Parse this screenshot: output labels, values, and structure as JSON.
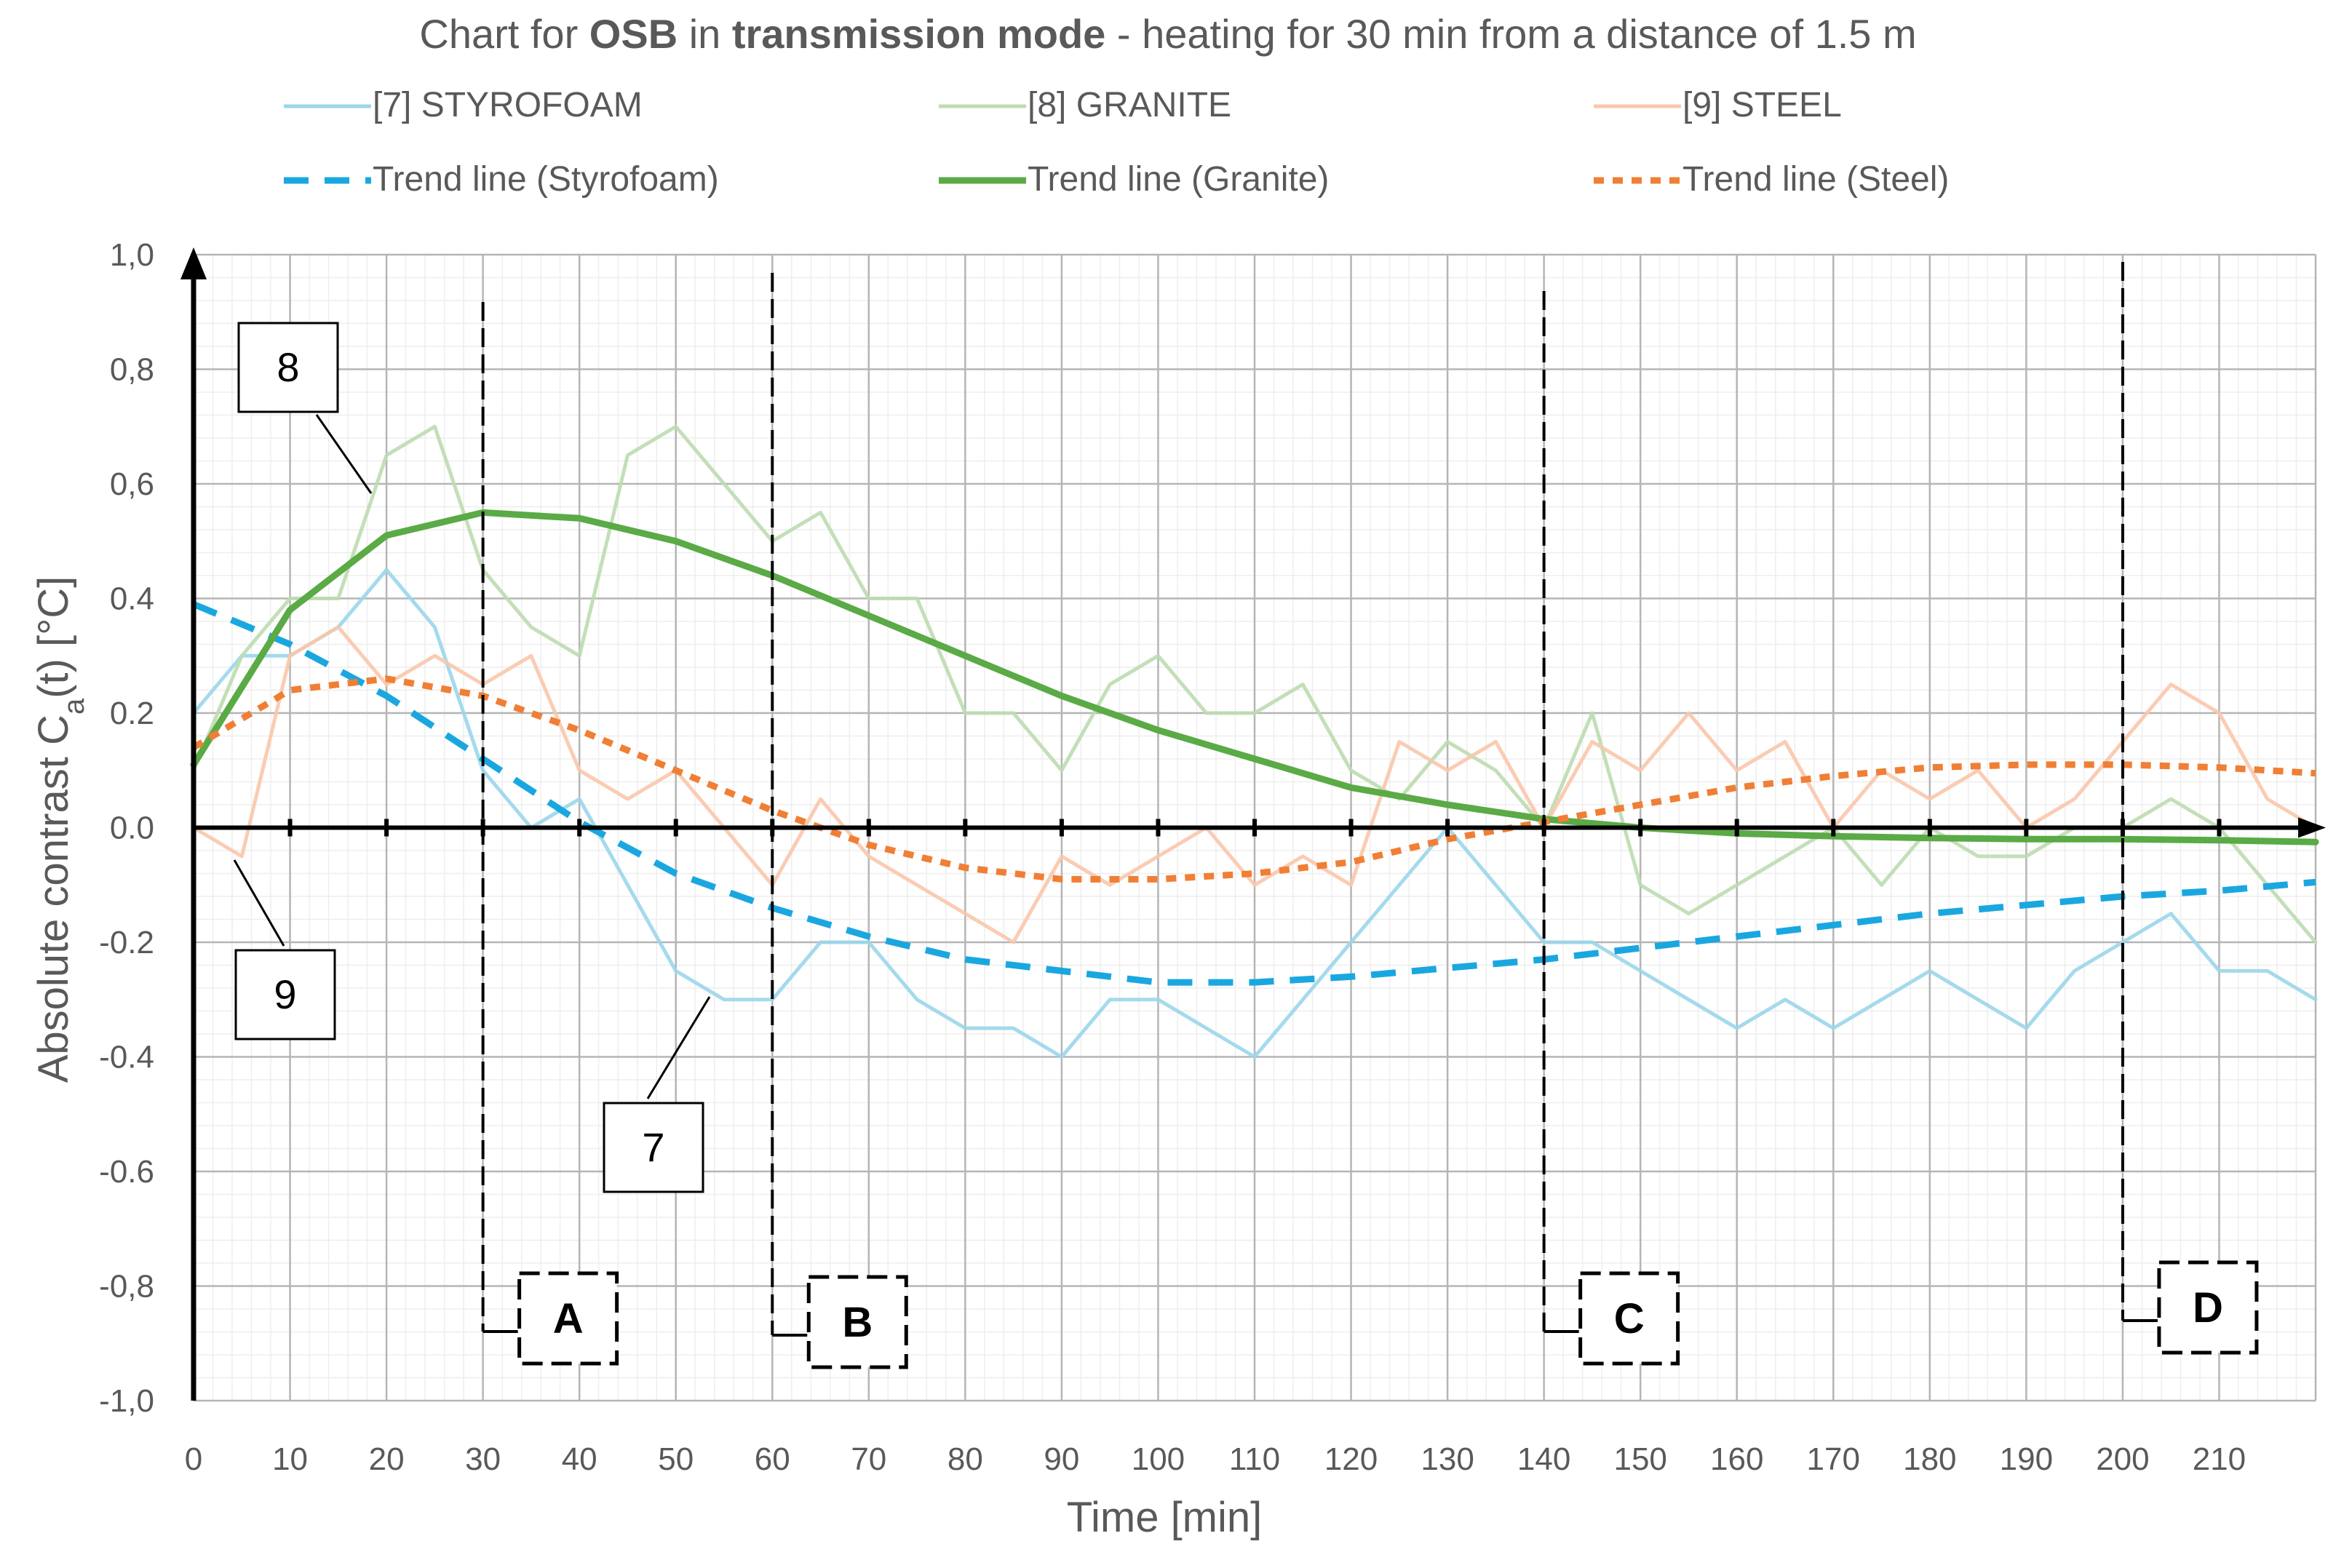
{
  "chart_data": {
    "type": "line",
    "title_parts": [
      {
        "text": "Chart for ",
        "bold": false
      },
      {
        "text": "OSB",
        "bold": true
      },
      {
        "text": " in ",
        "bold": false
      },
      {
        "text": "transmission mode",
        "bold": true
      },
      {
        "text": " - heating for 30 min from a distance of 1.5 m",
        "bold": false
      }
    ],
    "xlabel": "Time [min]",
    "ylabel_main": "Absolute contrast C",
    "ylabel_sub": "a",
    "ylabel_tail": "(t)   [°C]",
    "xlim": [
      0,
      220
    ],
    "ylim": [
      -1.0,
      1.0
    ],
    "x_ticks": [
      0,
      10,
      20,
      30,
      40,
      50,
      60,
      70,
      80,
      90,
      100,
      110,
      120,
      130,
      140,
      150,
      160,
      170,
      180,
      190,
      200,
      210
    ],
    "x_tick_labels": [
      "0",
      "10",
      "20",
      "30",
      "40",
      "50",
      "60",
      "70",
      "80",
      "90",
      "100",
      "110",
      "120",
      "130",
      "140",
      "150",
      "160",
      "170",
      "180",
      "190",
      "200",
      "210"
    ],
    "y_ticks": [
      1.0,
      0.8,
      0.6,
      0.4,
      0.2,
      0.0,
      -0.2,
      -0.4,
      -0.6,
      -0.8,
      -1.0
    ],
    "y_tick_labels": [
      "1,0",
      "0,8",
      "0,6",
      "0.4",
      "0.2",
      "0.0",
      "-0.2",
      "-0.4",
      "-0.6",
      "-0,8",
      "-1,0"
    ],
    "grid": true,
    "legend_position": "top",
    "colors": {
      "styrofoam": "#9ad6ea",
      "granite": "#bcdcb0",
      "steel": "#f9c7ab",
      "trend_styrofoam": "#1aa7e0",
      "trend_granite": "#5aaa46",
      "trend_steel": "#f07f35"
    },
    "series": [
      {
        "name": "[7] STYROFOAM",
        "key": "styrofoam",
        "x": [
          0,
          5,
          10,
          15,
          20,
          25,
          30,
          35,
          40,
          45,
          50,
          55,
          60,
          65,
          70,
          75,
          80,
          85,
          90,
          95,
          100,
          105,
          110,
          115,
          120,
          125,
          130,
          135,
          140,
          145,
          150,
          155,
          160,
          165,
          170,
          175,
          180,
          185,
          190,
          195,
          200,
          205,
          210,
          215,
          220
        ],
        "y": [
          0.2,
          0.3,
          0.3,
          0.35,
          0.45,
          0.35,
          0.1,
          0.0,
          0.05,
          -0.1,
          -0.25,
          -0.3,
          -0.3,
          -0.2,
          -0.2,
          -0.3,
          -0.35,
          -0.35,
          -0.4,
          -0.3,
          -0.3,
          -0.35,
          -0.4,
          -0.3,
          -0.2,
          -0.1,
          0.0,
          -0.1,
          -0.2,
          -0.2,
          -0.25,
          -0.3,
          -0.35,
          -0.3,
          -0.35,
          -0.3,
          -0.25,
          -0.3,
          -0.35,
          -0.25,
          -0.2,
          -0.15,
          -0.25,
          -0.25,
          -0.3
        ]
      },
      {
        "name": "[8]  GRANITE",
        "key": "granite",
        "x": [
          0,
          5,
          10,
          15,
          20,
          25,
          30,
          35,
          40,
          45,
          50,
          55,
          60,
          65,
          70,
          75,
          80,
          85,
          90,
          95,
          100,
          105,
          110,
          115,
          120,
          125,
          130,
          135,
          140,
          145,
          150,
          155,
          160,
          165,
          170,
          175,
          180,
          185,
          190,
          195,
          200,
          205,
          210,
          215,
          220
        ],
        "y": [
          0.1,
          0.3,
          0.4,
          0.4,
          0.65,
          0.7,
          0.45,
          0.35,
          0.3,
          0.65,
          0.7,
          0.6,
          0.5,
          0.55,
          0.4,
          0.4,
          0.2,
          0.2,
          0.1,
          0.25,
          0.3,
          0.2,
          0.2,
          0.25,
          0.1,
          0.05,
          0.15,
          0.1,
          0.0,
          0.2,
          -0.1,
          -0.15,
          -0.1,
          -0.05,
          0.0,
          -0.1,
          0.0,
          -0.05,
          -0.05,
          0.0,
          0.0,
          0.05,
          0.0,
          -0.1,
          -0.2
        ]
      },
      {
        "name": "[9] STEEL",
        "key": "steel",
        "x": [
          0,
          5,
          10,
          15,
          20,
          25,
          30,
          35,
          40,
          45,
          50,
          55,
          60,
          65,
          70,
          75,
          80,
          85,
          90,
          95,
          100,
          105,
          110,
          115,
          120,
          125,
          130,
          135,
          140,
          145,
          150,
          155,
          160,
          165,
          170,
          175,
          180,
          185,
          190,
          195,
          200,
          205,
          210,
          215,
          220
        ],
        "y": [
          0.0,
          -0.05,
          0.3,
          0.35,
          0.25,
          0.3,
          0.25,
          0.3,
          0.1,
          0.05,
          0.1,
          0.0,
          -0.1,
          0.05,
          -0.05,
          -0.1,
          -0.15,
          -0.2,
          -0.05,
          -0.1,
          -0.05,
          0.0,
          -0.1,
          -0.05,
          -0.1,
          0.15,
          0.1,
          0.15,
          0.0,
          0.15,
          0.1,
          0.2,
          0.1,
          0.15,
          0.0,
          0.1,
          0.05,
          0.1,
          0.0,
          0.05,
          0.15,
          0.25,
          0.2,
          0.05,
          0.0
        ]
      },
      {
        "name": "Trend line (Styrofoam)",
        "key": "trend_styrofoam",
        "x": [
          0,
          10,
          20,
          30,
          40,
          50,
          60,
          70,
          80,
          90,
          100,
          110,
          120,
          130,
          140,
          150,
          160,
          170,
          180,
          190,
          200,
          210,
          220
        ],
        "y": [
          0.39,
          0.32,
          0.23,
          0.12,
          0.01,
          -0.08,
          -0.14,
          -0.19,
          -0.23,
          -0.25,
          -0.27,
          -0.27,
          -0.26,
          -0.245,
          -0.23,
          -0.21,
          -0.19,
          -0.17,
          -0.15,
          -0.135,
          -0.12,
          -0.11,
          -0.095
        ]
      },
      {
        "name": "Trend line (Granite)",
        "key": "trend_granite",
        "x": [
          0,
          10,
          20,
          30,
          40,
          50,
          60,
          70,
          80,
          90,
          100,
          110,
          120,
          130,
          140,
          150,
          160,
          170,
          180,
          190,
          200,
          210,
          220
        ],
        "y": [
          0.11,
          0.38,
          0.51,
          0.55,
          0.54,
          0.5,
          0.44,
          0.37,
          0.3,
          0.23,
          0.17,
          0.12,
          0.07,
          0.04,
          0.015,
          0.0,
          -0.01,
          -0.015,
          -0.018,
          -0.02,
          -0.02,
          -0.022,
          -0.025
        ]
      },
      {
        "name": "Trend line (Steel)",
        "key": "trend_steel",
        "x": [
          0,
          10,
          20,
          30,
          40,
          50,
          60,
          70,
          80,
          90,
          100,
          110,
          120,
          130,
          140,
          150,
          160,
          170,
          180,
          190,
          200,
          210,
          220
        ],
        "y": [
          0.14,
          0.24,
          0.26,
          0.23,
          0.17,
          0.1,
          0.03,
          -0.03,
          -0.07,
          -0.09,
          -0.09,
          -0.08,
          -0.06,
          -0.02,
          0.01,
          0.04,
          0.07,
          0.09,
          0.105,
          0.11,
          0.11,
          0.105,
          0.095
        ]
      }
    ],
    "markers": [
      {
        "label": "A",
        "x": 30
      },
      {
        "label": "B",
        "x": 60
      },
      {
        "label": "C",
        "x": 140
      },
      {
        "label": "D",
        "x": 200
      }
    ],
    "callouts": [
      {
        "label": "8",
        "series": "granite"
      },
      {
        "label": "9",
        "series": "steel"
      },
      {
        "label": "7",
        "series": "styrofoam"
      }
    ]
  }
}
